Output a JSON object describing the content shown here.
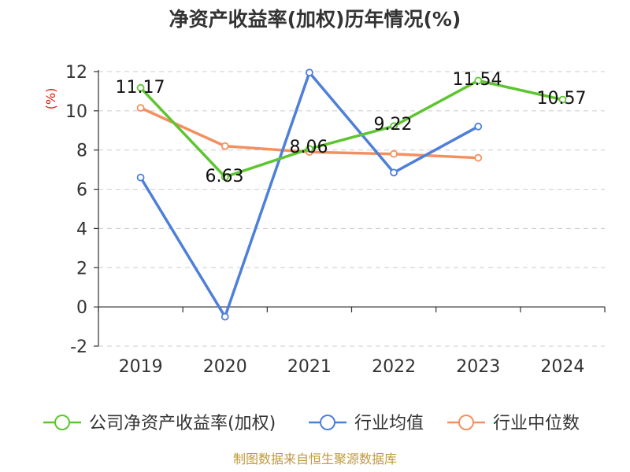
{
  "chart_data": {
    "type": "line",
    "title": "净资产收益率(加权)历年情况(%)",
    "ylabel": "(%)",
    "xlabel": "",
    "categories": [
      "2019",
      "2020",
      "2021",
      "2022",
      "2023",
      "2024"
    ],
    "ylim": [
      -2,
      12
    ],
    "yticks": [
      -2,
      0,
      2,
      4,
      6,
      8,
      10,
      12
    ],
    "grid": true,
    "legend_position": "bottom",
    "series": [
      {
        "name": "公司净资产收益率(加权)",
        "color": "#5ec530",
        "values": [
          11.17,
          6.63,
          8.06,
          9.22,
          11.54,
          10.57
        ],
        "labels": [
          "11.17",
          "6.63",
          "8.06",
          "9.22",
          "11.54",
          "10.57"
        ]
      },
      {
        "name": "行业均值",
        "color": "#4e7fd9",
        "values": [
          6.6,
          -0.5,
          11.95,
          6.85,
          9.2,
          null
        ]
      },
      {
        "name": "行业中位数",
        "color": "#f49060",
        "values": [
          10.15,
          8.2,
          7.9,
          7.8,
          7.6,
          null
        ]
      }
    ]
  },
  "source_note": "制图数据来自恒生聚源数据库"
}
